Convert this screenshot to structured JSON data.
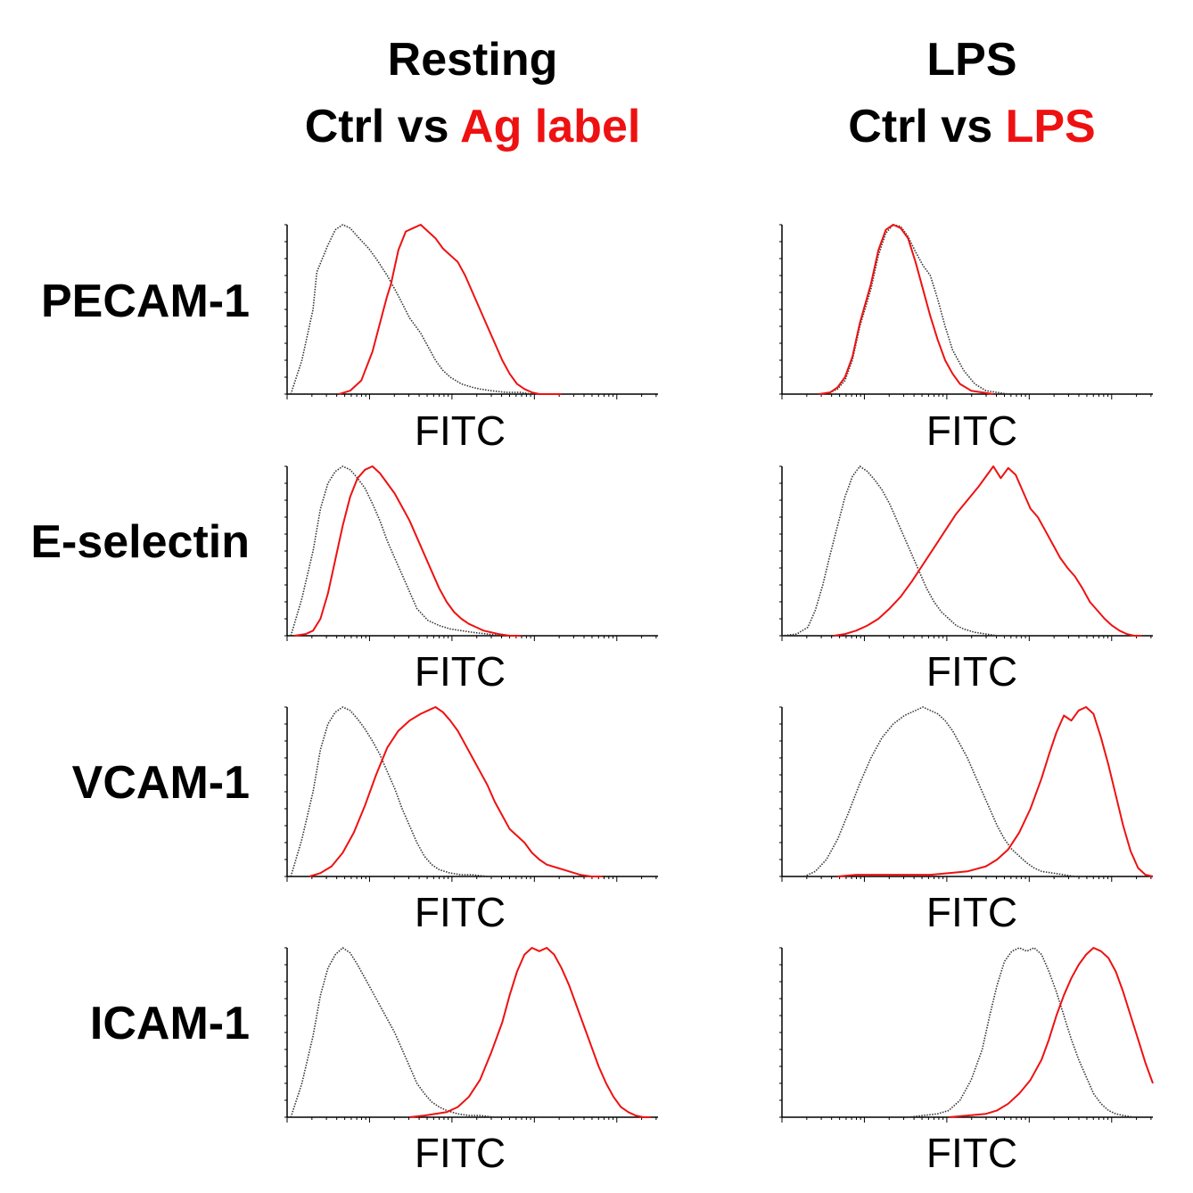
{
  "columns": [
    {
      "title": "Resting",
      "subtitle_prefix": "Ctrl vs ",
      "subtitle_red": "Ag label"
    },
    {
      "title": "LPS",
      "subtitle_prefix": "Ctrl vs ",
      "subtitle_red": "LPS"
    }
  ],
  "colors": {
    "control": "#333333",
    "treated": "#ee1111"
  },
  "chart_data": [
    {
      "type": "line",
      "row": "PECAM-1",
      "column": "Resting",
      "xlabel": "FITC",
      "xlim": [
        0,
        100
      ],
      "ylim": [
        0,
        100
      ],
      "series": [
        {
          "name": "Ctrl",
          "style": "dotted",
          "x": [
            1,
            4,
            7,
            8,
            11,
            13,
            15,
            17,
            19,
            22,
            24,
            27,
            30,
            33,
            36,
            38,
            40,
            42,
            44,
            47,
            50,
            52,
            55,
            59,
            63,
            66,
            70,
            73,
            76,
            80
          ],
          "values": [
            0,
            20,
            50,
            72,
            88,
            97,
            100,
            98,
            93,
            86,
            80,
            70,
            58,
            45,
            36,
            28,
            20,
            14,
            10,
            6,
            4,
            3,
            2,
            1,
            1,
            0,
            0,
            0,
            0,
            0
          ]
        },
        {
          "name": "Ag label",
          "style": "solid",
          "x": [
            14,
            17,
            20,
            23,
            26,
            27,
            28,
            30,
            32,
            34,
            36,
            38,
            40,
            42,
            44,
            46,
            48,
            50,
            52,
            54,
            56,
            58,
            60,
            62,
            64,
            66,
            68,
            71,
            74
          ],
          "values": [
            0,
            2,
            8,
            25,
            50,
            58,
            65,
            85,
            96,
            98,
            100,
            96,
            92,
            86,
            82,
            78,
            70,
            60,
            50,
            40,
            30,
            20,
            12,
            6,
            3,
            1,
            0,
            0,
            0
          ]
        }
      ]
    },
    {
      "type": "line",
      "row": "PECAM-1",
      "column": "LPS",
      "xlabel": "FITC",
      "xlim": [
        0,
        100
      ],
      "ylim": [
        0,
        100
      ],
      "series": [
        {
          "name": "Ctrl",
          "style": "dotted",
          "x": [
            10,
            13,
            15,
            17,
            19,
            21,
            24,
            26,
            28,
            30,
            32,
            33,
            34,
            36,
            38,
            40,
            42,
            44,
            46,
            49,
            52,
            55,
            58,
            61
          ],
          "values": [
            0,
            1,
            3,
            8,
            20,
            40,
            62,
            82,
            95,
            100,
            99,
            96,
            93,
            84,
            76,
            70,
            56,
            40,
            26,
            14,
            6,
            2,
            1,
            0
          ]
        },
        {
          "name": "LPS",
          "style": "solid",
          "x": [
            10,
            13,
            15,
            17,
            19,
            21,
            24,
            26,
            28,
            30,
            32,
            34,
            36,
            38,
            40,
            42,
            44,
            46,
            48,
            51,
            54,
            57
          ],
          "values": [
            0,
            1,
            4,
            10,
            22,
            42,
            65,
            85,
            97,
            100,
            98,
            92,
            78,
            62,
            46,
            32,
            20,
            12,
            6,
            2,
            1,
            0
          ]
        }
      ]
    },
    {
      "type": "line",
      "row": "E-selectin",
      "column": "Resting",
      "xlabel": "FITC",
      "xlim": [
        0,
        100
      ],
      "ylim": [
        0,
        100
      ],
      "series": [
        {
          "name": "Ctrl",
          "style": "dotted",
          "x": [
            1,
            4,
            7,
            9,
            11,
            13,
            15,
            17,
            19,
            21,
            23,
            25,
            27,
            29,
            31,
            33,
            35,
            38,
            41,
            44,
            47,
            50,
            54,
            58,
            62,
            66
          ],
          "values": [
            0,
            22,
            50,
            75,
            90,
            97,
            100,
            98,
            93,
            87,
            78,
            68,
            56,
            46,
            36,
            26,
            16,
            9,
            6,
            4,
            3,
            2,
            1,
            0,
            0,
            0
          ]
        },
        {
          "name": "Ag label",
          "style": "solid",
          "x": [
            2,
            5,
            7,
            9,
            11,
            13,
            15,
            17,
            19,
            21,
            23,
            25,
            27,
            29,
            31,
            33,
            35,
            37,
            39,
            41,
            43,
            45,
            47,
            49,
            51,
            53,
            55,
            57,
            60,
            63
          ],
          "values": [
            0,
            1,
            3,
            10,
            25,
            45,
            65,
            82,
            93,
            98,
            100,
            96,
            90,
            84,
            76,
            68,
            58,
            48,
            38,
            28,
            20,
            14,
            10,
            7,
            5,
            3,
            2,
            1,
            0,
            0
          ]
        }
      ]
    },
    {
      "type": "line",
      "row": "E-selectin",
      "column": "LPS",
      "xlabel": "FITC",
      "xlim": [
        0,
        100
      ],
      "ylim": [
        0,
        100
      ],
      "series": [
        {
          "name": "Ctrl",
          "style": "dotted",
          "x": [
            0,
            4,
            7,
            9,
            11,
            13,
            15,
            17,
            19,
            21,
            23,
            25,
            27,
            29,
            31,
            33,
            35,
            37,
            39,
            41,
            43,
            45,
            47,
            49,
            52,
            55,
            58,
            62,
            66
          ],
          "values": [
            0,
            1,
            5,
            15,
            30,
            48,
            65,
            82,
            94,
            100,
            97,
            92,
            86,
            78,
            68,
            58,
            48,
            38,
            28,
            20,
            14,
            10,
            6,
            4,
            2,
            1,
            0,
            0,
            0
          ]
        },
        {
          "name": "LPS",
          "style": "solid",
          "x": [
            14,
            17,
            20,
            23,
            26,
            29,
            32,
            35,
            38,
            41,
            44,
            47,
            50,
            53,
            55,
            57,
            59,
            61,
            63,
            65,
            67,
            69,
            71,
            73,
            75,
            77,
            79,
            81,
            83,
            85,
            87,
            89,
            91,
            93,
            95,
            97
          ],
          "values": [
            0,
            1,
            3,
            6,
            10,
            16,
            23,
            32,
            42,
            52,
            62,
            72,
            80,
            88,
            94,
            100,
            93,
            99,
            95,
            85,
            75,
            70,
            62,
            54,
            46,
            40,
            35,
            28,
            20,
            15,
            10,
            6,
            3,
            1,
            0,
            0
          ]
        }
      ]
    },
    {
      "type": "line",
      "row": "VCAM-1",
      "column": "Resting",
      "xlabel": "FITC",
      "xlim": [
        0,
        100
      ],
      "ylim": [
        0,
        100
      ],
      "series": [
        {
          "name": "Ctrl",
          "style": "dotted",
          "x": [
            1,
            4,
            7,
            9,
            11,
            13,
            15,
            17,
            19,
            21,
            23,
            25,
            27,
            29,
            31,
            33,
            35,
            37,
            39,
            41,
            44,
            47,
            50,
            54,
            58,
            62,
            66
          ],
          "values": [
            0,
            22,
            50,
            75,
            90,
            97,
            100,
            98,
            93,
            87,
            80,
            72,
            62,
            52,
            40,
            30,
            20,
            12,
            7,
            4,
            2,
            1,
            1,
            0,
            0,
            0,
            0
          ]
        },
        {
          "name": "Ag label",
          "style": "solid",
          "x": [
            6,
            9,
            12,
            15,
            18,
            21,
            24,
            27,
            30,
            33,
            36,
            38,
            40,
            42,
            44,
            46,
            48,
            50,
            52,
            54,
            56,
            58,
            60,
            62,
            64,
            66,
            68,
            70,
            73,
            76,
            79,
            82,
            85
          ],
          "values": [
            0,
            2,
            6,
            14,
            26,
            42,
            60,
            76,
            86,
            92,
            96,
            98,
            100,
            97,
            92,
            86,
            78,
            70,
            62,
            54,
            44,
            36,
            28,
            24,
            20,
            14,
            10,
            7,
            5,
            3,
            1,
            0,
            0
          ]
        }
      ]
    },
    {
      "type": "line",
      "row": "VCAM-1",
      "column": "LPS",
      "xlabel": "FITC",
      "xlim": [
        0,
        100
      ],
      "ylim": [
        0,
        100
      ],
      "series": [
        {
          "name": "Ctrl",
          "style": "dotted",
          "x": [
            6,
            9,
            12,
            15,
            18,
            21,
            24,
            27,
            30,
            33,
            36,
            38,
            40,
            42,
            44,
            46,
            48,
            50,
            52,
            54,
            56,
            58,
            60,
            62,
            64,
            66,
            68,
            70,
            73,
            76,
            79,
            82
          ],
          "values": [
            0,
            3,
            10,
            22,
            38,
            55,
            70,
            82,
            90,
            95,
            98,
            100,
            98,
            96,
            92,
            86,
            78,
            70,
            60,
            50,
            40,
            30,
            22,
            16,
            12,
            8,
            5,
            3,
            2,
            1,
            0,
            0
          ]
        },
        {
          "name": "LPS",
          "style": "solid",
          "x": [
            15,
            20,
            25,
            30,
            35,
            40,
            45,
            50,
            55,
            58,
            61,
            64,
            67,
            70,
            72,
            74,
            76,
            78,
            80,
            82,
            84,
            86,
            88,
            90,
            92,
            94,
            96,
            98,
            100
          ],
          "values": [
            0,
            1,
            1,
            1,
            1,
            1,
            2,
            3,
            6,
            10,
            16,
            26,
            40,
            58,
            72,
            85,
            95,
            92,
            98,
            100,
            96,
            82,
            66,
            48,
            30,
            15,
            5,
            1,
            0
          ]
        }
      ]
    },
    {
      "type": "line",
      "row": "ICAM-1",
      "column": "Resting",
      "xlabel": "FITC",
      "xlim": [
        0,
        100
      ],
      "ylim": [
        0,
        100
      ],
      "series": [
        {
          "name": "Ctrl",
          "style": "dotted",
          "x": [
            1,
            4,
            7,
            9,
            11,
            13,
            15,
            17,
            19,
            21,
            23,
            25,
            27,
            29,
            31,
            33,
            35,
            37,
            39,
            41,
            43,
            46,
            49,
            52,
            56,
            60,
            64,
            68
          ],
          "values": [
            0,
            20,
            48,
            72,
            88,
            96,
            100,
            97,
            90,
            82,
            74,
            66,
            58,
            50,
            40,
            30,
            20,
            14,
            9,
            6,
            4,
            2,
            1,
            1,
            0,
            0,
            0,
            0
          ]
        },
        {
          "name": "Ag label",
          "style": "solid",
          "x": [
            33,
            37,
            40,
            43,
            46,
            49,
            52,
            55,
            58,
            60,
            62,
            64,
            66,
            68,
            70,
            72,
            74,
            76,
            78,
            80,
            82,
            84,
            86,
            88,
            90,
            92,
            94,
            96,
            98
          ],
          "values": [
            0,
            1,
            2,
            3,
            6,
            12,
            22,
            38,
            56,
            72,
            86,
            96,
            100,
            98,
            100,
            96,
            88,
            78,
            66,
            54,
            42,
            30,
            20,
            12,
            6,
            3,
            1,
            0,
            0
          ]
        }
      ]
    },
    {
      "type": "line",
      "row": "ICAM-1",
      "column": "LPS",
      "xlabel": "FITC",
      "xlim": [
        0,
        100
      ],
      "ylim": [
        0,
        100
      ],
      "series": [
        {
          "name": "Ctrl",
          "style": "dotted",
          "x": [
            34,
            38,
            42,
            45,
            48,
            51,
            54,
            56,
            58,
            60,
            62,
            64,
            66,
            68,
            70,
            72,
            74,
            76,
            78,
            80,
            82,
            84,
            86,
            88,
            90,
            92,
            95
          ],
          "values": [
            0,
            1,
            2,
            4,
            10,
            22,
            40,
            60,
            78,
            92,
            98,
            100,
            98,
            100,
            96,
            86,
            74,
            60,
            46,
            34,
            24,
            14,
            8,
            4,
            2,
            1,
            0
          ]
        },
        {
          "name": "LPS",
          "style": "solid",
          "x": [
            45,
            50,
            55,
            58,
            61,
            64,
            67,
            70,
            72,
            74,
            76,
            78,
            80,
            82,
            84,
            86,
            88,
            90,
            92,
            94,
            96,
            98,
            100
          ],
          "values": [
            0,
            1,
            2,
            4,
            8,
            14,
            22,
            34,
            46,
            60,
            72,
            82,
            90,
            96,
            100,
            98,
            94,
            86,
            74,
            60,
            46,
            32,
            20
          ]
        }
      ]
    }
  ]
}
